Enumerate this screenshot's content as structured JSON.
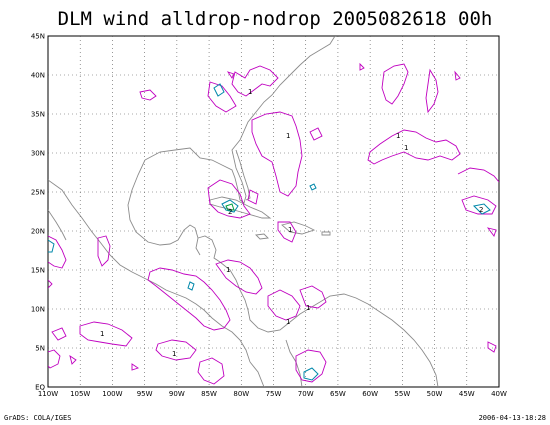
{
  "title": "DLM wind alldrop-nodrop 2005082618 00h",
  "map": {
    "lon_range": [
      -110,
      -40
    ],
    "lat_range": [
      0,
      45
    ],
    "grid": true,
    "x_ticks": [
      "110W",
      "105W",
      "100W",
      "95W",
      "90W",
      "85W",
      "80W",
      "75W",
      "70W",
      "65W",
      "60W",
      "55W",
      "50W",
      "45W",
      "40W"
    ],
    "y_ticks": [
      "EQ",
      "5N",
      "10N",
      "15N",
      "20N",
      "25N",
      "30N",
      "35N",
      "40N",
      "45N"
    ],
    "colors": {
      "coastline": "#8c8c8c",
      "contour_primary": "#c000c0",
      "contour_secondary": "#0088aa",
      "contour_tertiary": "#00a040",
      "grid": "#555555"
    }
  },
  "contour_labels": [
    "1",
    "1",
    "1",
    "1",
    "1",
    "1",
    "1",
    "1",
    "1",
    "2",
    "2",
    "1"
  ],
  "footer": {
    "left": "GrADS: COLA/IGES",
    "right": "2006-04-13-18:28"
  }
}
